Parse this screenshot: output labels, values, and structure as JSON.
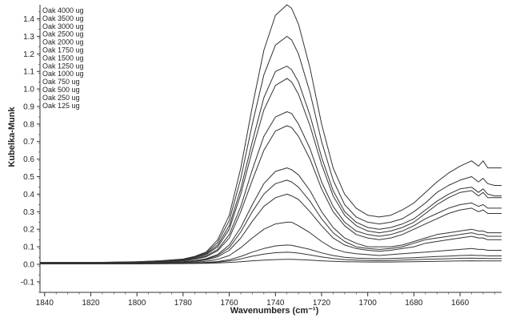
{
  "chart_data": {
    "type": "line",
    "title": "",
    "xlabel": "Wavenumbers (cm⁻¹)",
    "ylabel": "Kubelka-Munk",
    "xlim": [
      1842,
      1642
    ],
    "ylim": [
      -0.16,
      1.48
    ],
    "x_reversed": true,
    "x_ticks": [
      1840,
      1820,
      1800,
      1780,
      1760,
      1740,
      1720,
      1700,
      1680,
      1660
    ],
    "y_ticks": [
      -0.1,
      0.0,
      0.1,
      0.2,
      0.3,
      0.4,
      0.5,
      0.6,
      0.7,
      0.8,
      0.9,
      1.0,
      1.1,
      1.2,
      1.3,
      1.4
    ],
    "grid": false,
    "legend_position": "top-left",
    "line_color": "#333333",
    "x": [
      1842,
      1820,
      1800,
      1790,
      1780,
      1775,
      1770,
      1765,
      1760,
      1755,
      1750,
      1745,
      1740,
      1735,
      1733,
      1730,
      1725,
      1720,
      1715,
      1710,
      1705,
      1700,
      1695,
      1690,
      1685,
      1680,
      1675,
      1670,
      1665,
      1660,
      1655,
      1652,
      1650,
      1648,
      1645,
      1642
    ],
    "series": [
      {
        "name": "Oak 4000 ug",
        "values": [
          0.01,
          0.01,
          0.015,
          0.02,
          0.03,
          0.045,
          0.07,
          0.14,
          0.28,
          0.55,
          0.9,
          1.22,
          1.42,
          1.48,
          1.46,
          1.37,
          1.12,
          0.8,
          0.55,
          0.4,
          0.32,
          0.28,
          0.27,
          0.28,
          0.31,
          0.35,
          0.41,
          0.47,
          0.52,
          0.56,
          0.59,
          0.56,
          0.59,
          0.55,
          0.55,
          0.55
        ]
      },
      {
        "name": "Oak 3500 ug",
        "values": [
          0.01,
          0.01,
          0.014,
          0.02,
          0.028,
          0.042,
          0.065,
          0.125,
          0.25,
          0.49,
          0.8,
          1.08,
          1.25,
          1.3,
          1.28,
          1.2,
          0.98,
          0.7,
          0.48,
          0.34,
          0.27,
          0.24,
          0.23,
          0.24,
          0.26,
          0.3,
          0.35,
          0.41,
          0.45,
          0.48,
          0.5,
          0.47,
          0.49,
          0.46,
          0.45,
          0.45
        ]
      },
      {
        "name": "Oak 3000 ug",
        "values": [
          0.01,
          0.01,
          0.013,
          0.018,
          0.026,
          0.04,
          0.06,
          0.11,
          0.22,
          0.43,
          0.7,
          0.95,
          1.1,
          1.13,
          1.11,
          1.04,
          0.85,
          0.61,
          0.42,
          0.3,
          0.24,
          0.21,
          0.2,
          0.21,
          0.23,
          0.26,
          0.31,
          0.36,
          0.4,
          0.43,
          0.44,
          0.41,
          0.43,
          0.4,
          0.39,
          0.39
        ]
      },
      {
        "name": "Oak 2500 ug",
        "values": [
          0.01,
          0.01,
          0.012,
          0.017,
          0.024,
          0.036,
          0.055,
          0.1,
          0.2,
          0.4,
          0.65,
          0.88,
          1.02,
          1.06,
          1.04,
          0.97,
          0.79,
          0.57,
          0.39,
          0.28,
          0.22,
          0.19,
          0.18,
          0.19,
          0.21,
          0.24,
          0.29,
          0.34,
          0.38,
          0.41,
          0.42,
          0.39,
          0.41,
          0.38,
          0.38,
          0.38
        ]
      },
      {
        "name": "Oak 2000 ug",
        "values": [
          0.008,
          0.008,
          0.011,
          0.015,
          0.021,
          0.031,
          0.048,
          0.085,
          0.17,
          0.33,
          0.54,
          0.73,
          0.84,
          0.87,
          0.86,
          0.8,
          0.66,
          0.47,
          0.33,
          0.24,
          0.19,
          0.17,
          0.16,
          0.17,
          0.19,
          0.22,
          0.26,
          0.29,
          0.32,
          0.34,
          0.35,
          0.33,
          0.34,
          0.32,
          0.32,
          0.32
        ]
      },
      {
        "name": "Oak 1750 ug",
        "values": [
          0.008,
          0.008,
          0.01,
          0.014,
          0.019,
          0.028,
          0.043,
          0.077,
          0.15,
          0.3,
          0.48,
          0.65,
          0.76,
          0.79,
          0.78,
          0.73,
          0.6,
          0.43,
          0.3,
          0.22,
          0.17,
          0.15,
          0.14,
          0.15,
          0.17,
          0.2,
          0.23,
          0.26,
          0.29,
          0.31,
          0.32,
          0.3,
          0.31,
          0.29,
          0.29,
          0.29
        ]
      },
      {
        "name": "Oak 1500 ug",
        "values": [
          0.006,
          0.006,
          0.008,
          0.011,
          0.015,
          0.021,
          0.032,
          0.056,
          0.11,
          0.21,
          0.34,
          0.46,
          0.53,
          0.55,
          0.54,
          0.51,
          0.42,
          0.3,
          0.21,
          0.15,
          0.12,
          0.1,
          0.1,
          0.1,
          0.11,
          0.13,
          0.15,
          0.17,
          0.18,
          0.19,
          0.2,
          0.19,
          0.19,
          0.18,
          0.18,
          0.18
        ]
      },
      {
        "name": "Oak 1250 ug",
        "values": [
          0.006,
          0.006,
          0.008,
          0.01,
          0.014,
          0.019,
          0.029,
          0.05,
          0.095,
          0.185,
          0.3,
          0.4,
          0.46,
          0.48,
          0.47,
          0.44,
          0.36,
          0.26,
          0.18,
          0.13,
          0.1,
          0.09,
          0.085,
          0.09,
          0.1,
          0.12,
          0.14,
          0.15,
          0.16,
          0.17,
          0.18,
          0.17,
          0.17,
          0.16,
          0.16,
          0.16
        ]
      },
      {
        "name": "Oak 1000 ug",
        "values": [
          0.005,
          0.005,
          0.007,
          0.009,
          0.012,
          0.017,
          0.025,
          0.043,
          0.08,
          0.15,
          0.245,
          0.33,
          0.38,
          0.4,
          0.39,
          0.37,
          0.3,
          0.22,
          0.15,
          0.11,
          0.09,
          0.08,
          0.075,
          0.08,
          0.09,
          0.1,
          0.12,
          0.13,
          0.14,
          0.15,
          0.16,
          0.15,
          0.15,
          0.14,
          0.14,
          0.14
        ]
      },
      {
        "name": "Oak 750 ug",
        "values": [
          0.004,
          0.004,
          0.005,
          0.007,
          0.009,
          0.012,
          0.017,
          0.028,
          0.05,
          0.095,
          0.15,
          0.2,
          0.23,
          0.24,
          0.24,
          0.22,
          0.18,
          0.13,
          0.09,
          0.07,
          0.06,
          0.055,
          0.05,
          0.055,
          0.06,
          0.065,
          0.07,
          0.075,
          0.08,
          0.085,
          0.09,
          0.085,
          0.085,
          0.08,
          0.08,
          0.08
        ]
      },
      {
        "name": "Oak 500 ug",
        "values": [
          0.003,
          0.003,
          0.004,
          0.005,
          0.006,
          0.008,
          0.011,
          0.016,
          0.026,
          0.045,
          0.07,
          0.09,
          0.105,
          0.11,
          0.108,
          0.1,
          0.085,
          0.065,
          0.05,
          0.04,
          0.035,
          0.033,
          0.032,
          0.033,
          0.035,
          0.038,
          0.041,
          0.044,
          0.047,
          0.05,
          0.052,
          0.05,
          0.05,
          0.048,
          0.048,
          0.048
        ]
      },
      {
        "name": "Oak 250 ug",
        "values": [
          0.002,
          0.002,
          0.003,
          0.004,
          0.005,
          0.006,
          0.008,
          0.012,
          0.019,
          0.031,
          0.046,
          0.058,
          0.066,
          0.069,
          0.068,
          0.064,
          0.054,
          0.042,
          0.033,
          0.027,
          0.024,
          0.022,
          0.021,
          0.022,
          0.024,
          0.026,
          0.028,
          0.03,
          0.032,
          0.034,
          0.035,
          0.034,
          0.034,
          0.033,
          0.033,
          0.033
        ]
      },
      {
        "name": "Oak 125 ug",
        "values": [
          0.002,
          0.002,
          0.002,
          0.003,
          0.004,
          0.005,
          0.006,
          0.008,
          0.011,
          0.015,
          0.02,
          0.024,
          0.027,
          0.028,
          0.028,
          0.027,
          0.024,
          0.02,
          0.017,
          0.015,
          0.014,
          0.013,
          0.013,
          0.013,
          0.014,
          0.015,
          0.016,
          0.017,
          0.018,
          0.019,
          0.02,
          0.019,
          0.019,
          0.019,
          0.019,
          0.019
        ]
      }
    ]
  }
}
